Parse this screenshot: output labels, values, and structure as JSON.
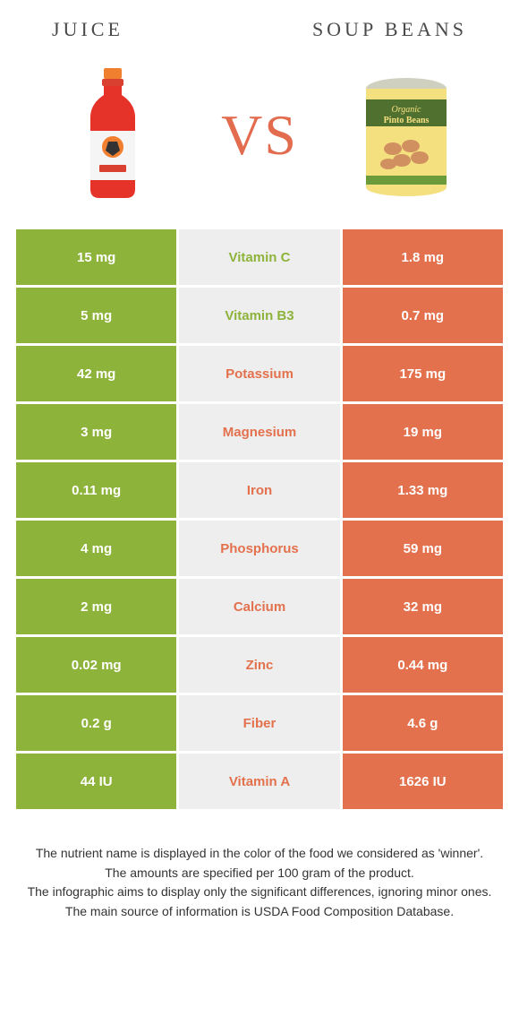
{
  "header": {
    "left_title": "JUICE",
    "right_title": "SOUP BEANS",
    "vs": "VS"
  },
  "colors": {
    "green": "#8eb33b",
    "orange": "#e3714d",
    "gray": "#eeeeee",
    "text_dark": "#4a4a4a"
  },
  "rows": [
    {
      "left": "15 mg",
      "label": "Vitamin C",
      "right": "1.8 mg",
      "winner": "left"
    },
    {
      "left": "5 mg",
      "label": "Vitamin B3",
      "right": "0.7 mg",
      "winner": "left"
    },
    {
      "left": "42 mg",
      "label": "Potassium",
      "right": "175 mg",
      "winner": "right"
    },
    {
      "left": "3 mg",
      "label": "Magnesium",
      "right": "19 mg",
      "winner": "right"
    },
    {
      "left": "0.11 mg",
      "label": "Iron",
      "right": "1.33 mg",
      "winner": "right"
    },
    {
      "left": "4 mg",
      "label": "Phosphorus",
      "right": "59 mg",
      "winner": "right"
    },
    {
      "left": "2 mg",
      "label": "Calcium",
      "right": "32 mg",
      "winner": "right"
    },
    {
      "left": "0.02 mg",
      "label": "Zinc",
      "right": "0.44 mg",
      "winner": "right"
    },
    {
      "left": "0.2 g",
      "label": "Fiber",
      "right": "4.6 g",
      "winner": "right"
    },
    {
      "left": "44 IU",
      "label": "Vitamin A",
      "right": "1626 IU",
      "winner": "right"
    }
  ],
  "footer": {
    "line1": "The nutrient name is displayed in the color of the food we considered as 'winner'.",
    "line2": "The amounts are specified per 100 gram of the product.",
    "line3": "The infographic aims to display only the significant differences, ignoring minor ones.",
    "line4": "The main source of information is USDA Food Composition Database."
  }
}
